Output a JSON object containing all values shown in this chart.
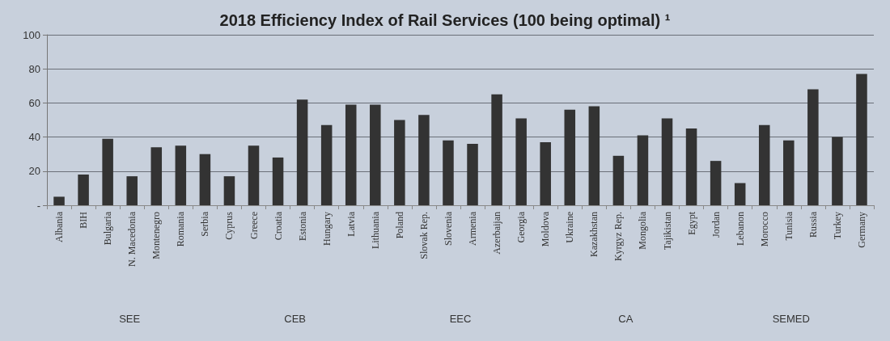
{
  "chart_data": {
    "type": "bar",
    "title": "2018 Efficiency Index of Rail Services (100 being optimal) ¹",
    "categories": [
      "Albania",
      "BIH",
      "Bulgaria",
      "N. Macedonia",
      "Montenegro",
      "Romania",
      "Serbia",
      "Cyprus",
      "Greece",
      "Croatia",
      "Estonia",
      "Hungary",
      "Latvia",
      "Lithuania",
      "Poland",
      "Slovak Rep.",
      "Slovenia",
      "Armenia",
      "Azerbaijan",
      "Georgia",
      "Moldova",
      "Ukraine",
      "Kazakhstan",
      "Kyrgyz Rep.",
      "Mongolia",
      "Tajikistan",
      "Egypt",
      "Jordan",
      "Lebanon",
      "Morocco",
      "Tunisia",
      "Russia",
      "Turkey",
      "Germany"
    ],
    "values": [
      5,
      18,
      39,
      17,
      34,
      35,
      30,
      17,
      35,
      28,
      62,
      47,
      59,
      59,
      50,
      53,
      38,
      36,
      65,
      51,
      37,
      56,
      58,
      29,
      41,
      51,
      45,
      26,
      13,
      47,
      38,
      68,
      40,
      77
    ],
    "color": "#333333",
    "ylim": [
      0,
      100
    ],
    "yticks": [
      {
        "value": 0,
        "label": "-"
      },
      20,
      40,
      60,
      80,
      100
    ],
    "grid": "y",
    "annotations": [
      "SEE",
      "CEB",
      "EEC",
      "CA",
      "SEMED"
    ]
  }
}
